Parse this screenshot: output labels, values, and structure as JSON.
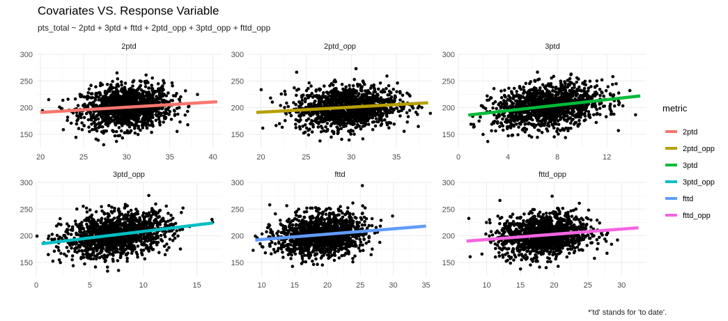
{
  "title": "Covariates VS. Response Variable",
  "subtitle": "pts_total ~ 2ptd + 3ptd + fttd + 2ptd_opp + 3ptd_opp + fttd_opp",
  "caption": "*'td' stands for 'to date'.",
  "legend": {
    "title": "metric",
    "placement": "right",
    "entries": [
      {
        "label": "2ptd",
        "color": "#F8766D"
      },
      {
        "label": "2ptd_opp",
        "color": "#B79F00"
      },
      {
        "label": "3ptd",
        "color": "#00BA38"
      },
      {
        "label": "3ptd_opp",
        "color": "#00BFC4"
      },
      {
        "label": "fttd",
        "color": "#619CFF"
      },
      {
        "label": "fttd_opp",
        "color": "#F564E3"
      }
    ]
  },
  "chart_data": [
    {
      "type": "scatter",
      "facet": "2ptd",
      "color": "#F8766D",
      "xlim": [
        19.5,
        41
      ],
      "ylim": [
        125,
        300
      ],
      "xticks": [
        20,
        25,
        30,
        35,
        40
      ],
      "yticks": [
        150,
        200,
        250,
        300
      ],
      "x_center": 30,
      "x_spread": 2.6,
      "y_center": 200,
      "y_spread": 20,
      "fit": [
        [
          20,
          191
        ],
        [
          40.5,
          211
        ]
      ],
      "grid": true
    },
    {
      "type": "scatter",
      "facet": "2ptd_opp",
      "color": "#B79F00",
      "xlim": [
        18.5,
        39
      ],
      "ylim": [
        125,
        300
      ],
      "xticks": [
        20,
        25,
        30,
        35
      ],
      "yticks": [
        150,
        200,
        250,
        300
      ],
      "x_center": 29.5,
      "x_spread": 2.8,
      "y_center": 200,
      "y_spread": 20,
      "fit": [
        [
          19.5,
          191
        ],
        [
          38.5,
          209
        ]
      ],
      "grid": true
    },
    {
      "type": "scatter",
      "facet": "3ptd",
      "color": "#00BA38",
      "xlim": [
        0,
        15.2
      ],
      "ylim": [
        125,
        300
      ],
      "xticks": [
        0,
        4,
        8,
        12
      ],
      "yticks": [
        150,
        200,
        250,
        300
      ],
      "x_center": 7.3,
      "x_spread": 2.2,
      "y_center": 200,
      "y_spread": 20,
      "fit": [
        [
          0.8,
          186
        ],
        [
          14.7,
          222
        ]
      ],
      "grid": true
    },
    {
      "type": "scatter",
      "facet": "3ptd_opp",
      "color": "#00BFC4",
      "xlim": [
        0,
        17.3
      ],
      "ylim": [
        125,
        300
      ],
      "xticks": [
        0,
        5,
        10,
        15
      ],
      "yticks": [
        150,
        200,
        250,
        300
      ],
      "x_center": 7.5,
      "x_spread": 2.5,
      "y_center": 200,
      "y_spread": 20,
      "fit": [
        [
          0.5,
          185
        ],
        [
          16.5,
          224
        ]
      ],
      "grid": true
    },
    {
      "type": "scatter",
      "facet": "fttd",
      "color": "#619CFF",
      "xlim": [
        7.8,
        36
      ],
      "ylim": [
        125,
        300
      ],
      "xticks": [
        10,
        15,
        20,
        25,
        30,
        35
      ],
      "yticks": [
        150,
        200,
        250,
        300
      ],
      "x_center": 19,
      "x_spread": 3.3,
      "y_center": 200,
      "y_spread": 20,
      "fit": [
        [
          9,
          192
        ],
        [
          35,
          218
        ]
      ],
      "grid": true
    },
    {
      "type": "scatter",
      "facet": "fttd_opp",
      "color": "#F564E3",
      "xlim": [
        5.8,
        33.7
      ],
      "ylim": [
        125,
        300
      ],
      "xticks": [
        10,
        15,
        20,
        25,
        30
      ],
      "yticks": [
        150,
        200,
        250,
        300
      ],
      "x_center": 18.5,
      "x_spread": 3.3,
      "y_center": 200,
      "y_spread": 20,
      "fit": [
        [
          7,
          190
        ],
        [
          32.5,
          215
        ]
      ],
      "grid": true
    }
  ]
}
